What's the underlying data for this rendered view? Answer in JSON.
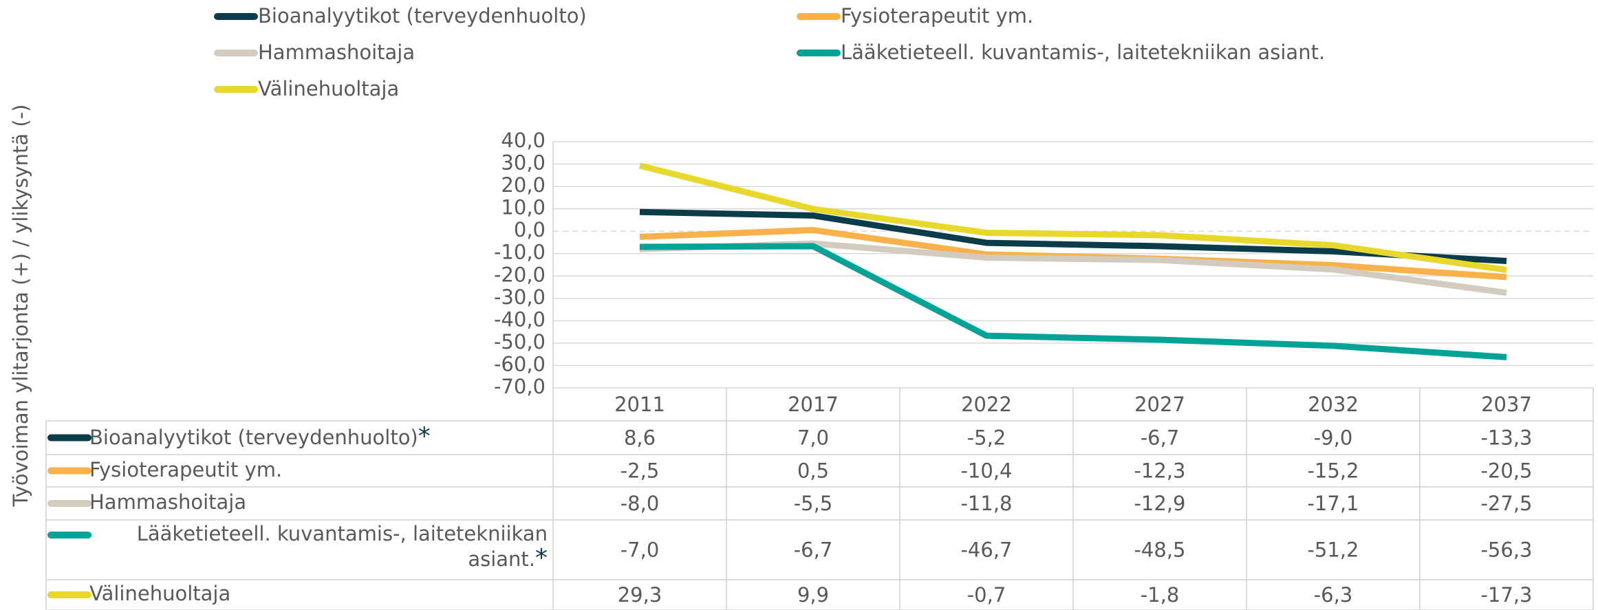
{
  "chart_data": {
    "type": "line",
    "y_axis_label": "Työvoiman ylitarjonta (+) / ylikysyntä (-)",
    "categories": [
      "2011",
      "2017",
      "2022",
      "2027",
      "2032",
      "2037"
    ],
    "ylim": [
      -70,
      40
    ],
    "yticks": [
      {
        "value": 40,
        "label": "40,0"
      },
      {
        "value": 30,
        "label": "30,0"
      },
      {
        "value": 20,
        "label": "20,0"
      },
      {
        "value": 10,
        "label": "10,0"
      },
      {
        "value": 0,
        "label": "0,0"
      },
      {
        "value": -10,
        "label": "-10,0"
      },
      {
        "value": -20,
        "label": "-20,0"
      },
      {
        "value": -30,
        "label": "-30,0"
      },
      {
        "value": -40,
        "label": "-40,0"
      },
      {
        "value": -50,
        "label": "-50,0"
      },
      {
        "value": -60,
        "label": "-60,0"
      },
      {
        "value": -70,
        "label": "-70,0"
      }
    ],
    "grid": true,
    "series": [
      {
        "name": "Bioanalyytikot (terveydenhuolto)",
        "footnote_mark": "*",
        "color": "#0b3c49",
        "values": [
          8.6,
          7.0,
          -5.2,
          -6.7,
          -9.0,
          -13.3
        ],
        "value_labels": [
          "8,6",
          "7,0",
          "-5,2",
          "-6,7",
          "-9,0",
          "-13,3"
        ]
      },
      {
        "name": "Fysioterapeutit ym.",
        "color": "#f9b24a",
        "values": [
          -2.5,
          0.5,
          -10.4,
          -12.3,
          -15.2,
          -20.5
        ],
        "value_labels": [
          "-2,5",
          "0,5",
          "-10,4",
          "-12,3",
          "-15,2",
          "-20,5"
        ]
      },
      {
        "name": "Hammashoitaja",
        "color": "#d3ccbe",
        "values": [
          -8.0,
          -5.5,
          -11.8,
          -12.9,
          -17.1,
          -27.5
        ],
        "value_labels": [
          "-8,0",
          "-5,5",
          "-11,8",
          "-12,9",
          "-17,1",
          "-27,5"
        ]
      },
      {
        "name": "Lääketieteell. kuvantamis-, laitetekniikan asiant.",
        "footnote_mark": "*",
        "color": "#00a395",
        "values": [
          -7.0,
          -6.7,
          -46.7,
          -48.5,
          -51.2,
          -56.3
        ],
        "value_labels": [
          "-7,0",
          "-6,7",
          "-46,7",
          "-48,5",
          "-51,2",
          "-56,3"
        ]
      },
      {
        "name": "Välinehuoltaja",
        "color": "#e8d82c",
        "values": [
          29.3,
          9.9,
          -0.7,
          -1.8,
          -6.3,
          -17.3
        ],
        "value_labels": [
          "29,3",
          "9,9",
          "-0,7",
          "-1,8",
          "-6,3",
          "-17,3"
        ]
      }
    ]
  }
}
